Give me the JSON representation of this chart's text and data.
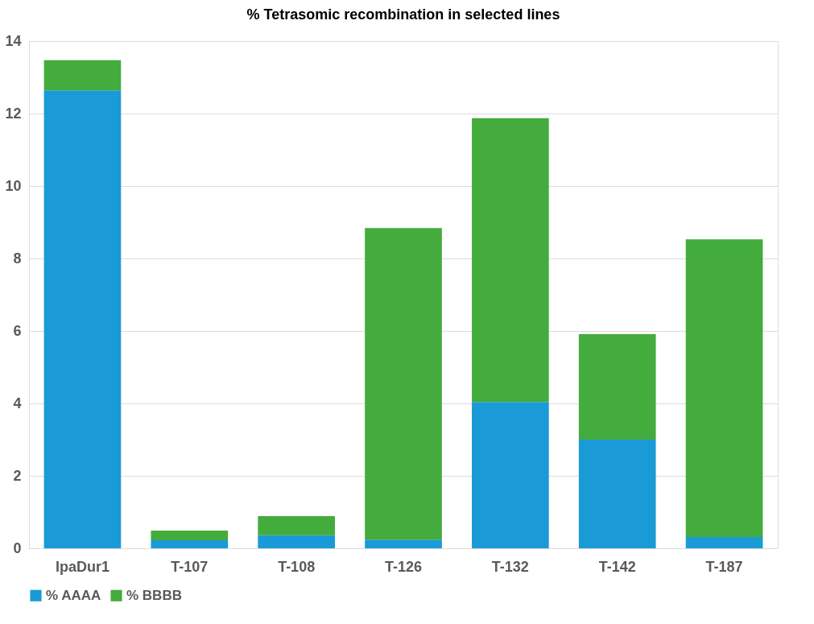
{
  "chart_data": {
    "type": "bar",
    "title": "% Tetrasomic recombination in selected lines",
    "categories": [
      "IpaDur1",
      "T-107",
      "T-108",
      "T-126",
      "T-132",
      "T-142",
      "T-187"
    ],
    "stacked": true,
    "series": [
      {
        "name": "% AAAA",
        "color": "#1a9ad6",
        "values": [
          12.64,
          0.22,
          0.36,
          0.24,
          4.04,
          3.0,
          0.31
        ]
      },
      {
        "name": "% BBBB",
        "color": "#43ac3c",
        "values": [
          0.83,
          0.27,
          0.53,
          8.6,
          7.83,
          2.91,
          8.22
        ]
      }
    ],
    "ylim": [
      0,
      14
    ],
    "yticks": [
      0,
      2,
      4,
      6,
      8,
      10,
      12,
      14
    ],
    "grid": "y",
    "legend": "bottom"
  }
}
